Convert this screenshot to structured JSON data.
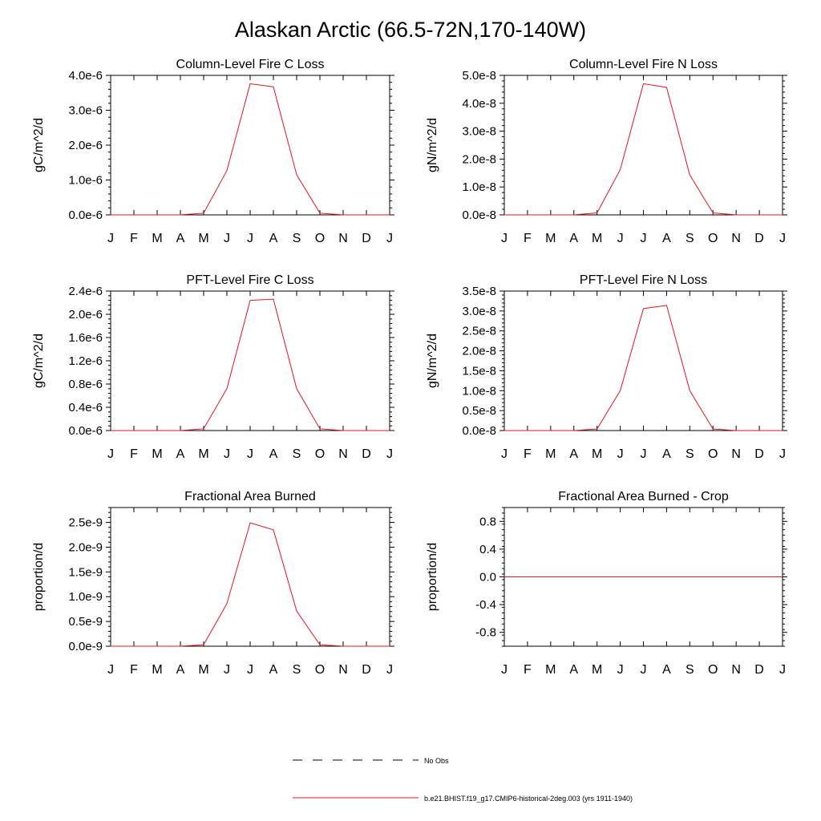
{
  "page_title": "Alaskan Arctic (66.5-72N,170-140W)",
  "legend": {
    "obs_label": "No Obs",
    "model_label": "b.e21.BHIST.f19_g17.CMIP6-historical-2deg.003 (yrs 1911-1940)",
    "model_color": "#e8141e",
    "obs_color": "#000000"
  },
  "chart_data": [
    {
      "type": "line",
      "title": "Column-Level Fire C Loss",
      "ylabel": "gC/m^2/d",
      "x": [
        "J",
        "F",
        "M",
        "A",
        "M",
        "J",
        "J",
        "A",
        "S",
        "O",
        "N",
        "D",
        "J"
      ],
      "ylim": [
        0,
        4e-06
      ],
      "yticks": [
        "0.0e-6",
        "1.0e-6",
        "2.0e-6",
        "3.0e-6",
        "4.0e-6"
      ],
      "ytick_values": [
        0,
        1e-06,
        2e-06,
        3e-06,
        4e-06
      ],
      "series": [
        {
          "values": [
            0,
            0,
            0,
            0,
            5e-08,
            1.27e-06,
            3.76e-06,
            3.67e-06,
            1.15e-06,
            5e-08,
            0,
            0,
            0
          ]
        }
      ]
    },
    {
      "type": "line",
      "title": "Column-Level Fire N Loss",
      "ylabel": "gN/m^2/d",
      "x": [
        "J",
        "F",
        "M",
        "A",
        "M",
        "J",
        "J",
        "A",
        "S",
        "O",
        "N",
        "D",
        "J"
      ],
      "ylim": [
        0,
        5e-08
      ],
      "yticks": [
        "0.0e-8",
        "1.0e-8",
        "2.0e-8",
        "3.0e-8",
        "4.0e-8",
        "5.0e-8"
      ],
      "ytick_values": [
        0,
        1e-08,
        2e-08,
        3e-08,
        4e-08,
        5e-08
      ],
      "series": [
        {
          "values": [
            0,
            0,
            0,
            0,
            7e-10,
            1.62e-08,
            4.7e-08,
            4.57e-08,
            1.43e-08,
            7e-10,
            0,
            0,
            0
          ]
        }
      ]
    },
    {
      "type": "line",
      "title": "PFT-Level Fire C Loss",
      "ylabel": "gC/m^2/d",
      "x": [
        "J",
        "F",
        "M",
        "A",
        "M",
        "J",
        "J",
        "A",
        "S",
        "O",
        "N",
        "D",
        "J"
      ],
      "ylim": [
        0,
        2.4e-06
      ],
      "yticks": [
        "0.0e-6",
        "0.4e-6",
        "0.8e-6",
        "1.2e-6",
        "1.6e-6",
        "2.0e-6",
        "2.4e-6"
      ],
      "ytick_values": [
        0,
        4e-07,
        8e-07,
        1.2e-06,
        1.6e-06,
        2e-06,
        2.4e-06
      ],
      "series": [
        {
          "values": [
            0,
            0,
            0,
            0,
            3e-08,
            7.2e-07,
            2.24e-06,
            2.26e-06,
            7.2e-07,
            3e-08,
            0,
            0,
            0
          ]
        }
      ]
    },
    {
      "type": "line",
      "title": "PFT-Level Fire N Loss",
      "ylabel": "gN/m^2/d",
      "x": [
        "J",
        "F",
        "M",
        "A",
        "M",
        "J",
        "J",
        "A",
        "S",
        "O",
        "N",
        "D",
        "J"
      ],
      "ylim": [
        0,
        3.5e-08
      ],
      "yticks": [
        "0.0e-8",
        "0.5e-8",
        "1.0e-8",
        "1.5e-8",
        "2.0e-8",
        "2.5e-8",
        "3.0e-8",
        "3.5e-8"
      ],
      "ytick_values": [
        0,
        5e-09,
        1e-08,
        1.5e-08,
        2e-08,
        2.5e-08,
        3e-08,
        3.5e-08
      ],
      "series": [
        {
          "values": [
            0,
            0,
            0,
            0,
            4e-10,
            1e-08,
            3.06e-08,
            3.14e-08,
            1e-08,
            4e-10,
            0,
            0,
            0
          ]
        }
      ]
    },
    {
      "type": "line",
      "title": "Fractional Area Burned",
      "ylabel": "proportion/d",
      "x": [
        "J",
        "F",
        "M",
        "A",
        "M",
        "J",
        "J",
        "A",
        "S",
        "O",
        "N",
        "D",
        "J"
      ],
      "ylim": [
        0,
        2.8e-09
      ],
      "yticks": [
        "0.0e-9",
        "0.5e-9",
        "1.0e-9",
        "1.5e-9",
        "2.0e-9",
        "2.5e-9"
      ],
      "ytick_values": [
        0,
        5e-10,
        1e-09,
        1.5e-09,
        2e-09,
        2.5e-09
      ],
      "series": [
        {
          "values": [
            0,
            0,
            0,
            0,
            3e-11,
            8.6e-10,
            2.49e-09,
            2.35e-09,
            7.1e-10,
            3e-11,
            0,
            0,
            0
          ]
        }
      ]
    },
    {
      "type": "line",
      "title": "Fractional Area Burned - Crop",
      "ylabel": "proportion/d",
      "x": [
        "J",
        "F",
        "M",
        "A",
        "M",
        "J",
        "J",
        "A",
        "S",
        "O",
        "N",
        "D",
        "J"
      ],
      "ylim": [
        -1.0,
        1.0
      ],
      "yticks": [
        "-0.8",
        "-0.4",
        "0.0",
        "0.4",
        "0.8"
      ],
      "ytick_values": [
        -0.8,
        -0.4,
        0.0,
        0.4,
        0.8
      ],
      "series": [
        {
          "values": [
            0,
            0,
            0,
            0,
            0,
            0,
            0,
            0,
            0,
            0,
            0,
            0,
            0
          ]
        }
      ]
    }
  ]
}
